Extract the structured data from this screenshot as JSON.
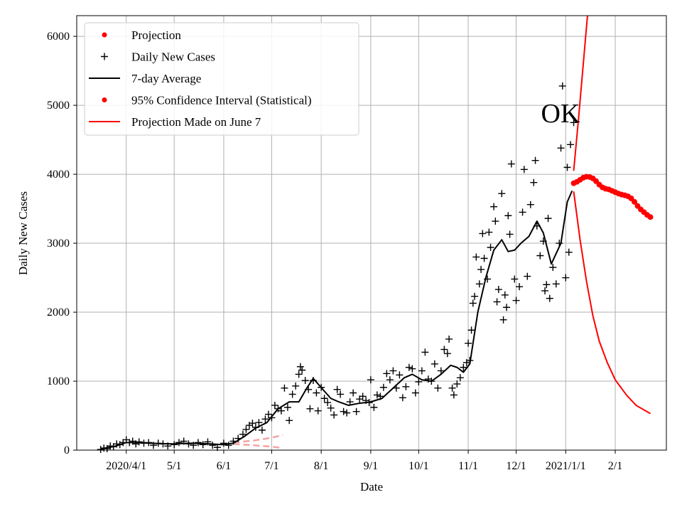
{
  "chart_data": {
    "type": "scatter",
    "title": "",
    "annotation": "OK",
    "xlabel": "Date",
    "ylabel": "Daily New Cases",
    "ylim": [
      0,
      6300
    ],
    "xlim": [
      "2020-03-01",
      "2021-03-05"
    ],
    "grid": true,
    "legend_position": "top-left",
    "yticks": [
      0,
      1000,
      2000,
      3000,
      4000,
      5000,
      6000
    ],
    "xticks": [
      {
        "date": "2020-04-01",
        "label": "2020/4/1"
      },
      {
        "date": "2020-05-01",
        "label": "5/1"
      },
      {
        "date": "2020-06-01",
        "label": "6/1"
      },
      {
        "date": "2020-07-01",
        "label": "7/1"
      },
      {
        "date": "2020-08-01",
        "label": "8/1"
      },
      {
        "date": "2020-09-01",
        "label": "9/1"
      },
      {
        "date": "2020-10-01",
        "label": "10/1"
      },
      {
        "date": "2020-11-01",
        "label": "11/1"
      },
      {
        "date": "2020-12-01",
        "label": "12/1"
      },
      {
        "date": "2021-01-01",
        "label": "2021/1/1"
      },
      {
        "date": "2021-02-01",
        "label": "2/1"
      }
    ],
    "legend": [
      {
        "label": "Projection",
        "marker": "dot",
        "color": "#ff0000"
      },
      {
        "label": "Daily New Cases",
        "marker": "plus",
        "color": "#000000"
      },
      {
        "label": "7-day Average",
        "marker": "line",
        "color": "#000000"
      },
      {
        "label": "95% Confidence Interval (Statistical)",
        "marker": "dot",
        "color": "#ff0000"
      },
      {
        "label": "Projection Made on June 7",
        "marker": "line",
        "color": "#ff0000"
      }
    ],
    "colors": {
      "cases": "#000000",
      "average": "#000000",
      "projection": "#ff0000",
      "june7": "#f4a3a3",
      "grid": "#b0b0b0"
    },
    "series": [
      {
        "name": "Daily New Cases",
        "kind": "scatter",
        "points": [
          [
            "2020-03-16",
            10
          ],
          [
            "2020-03-18",
            30
          ],
          [
            "2020-03-20",
            20
          ],
          [
            "2020-03-22",
            60
          ],
          [
            "2020-03-24",
            50
          ],
          [
            "2020-03-26",
            90
          ],
          [
            "2020-03-28",
            80
          ],
          [
            "2020-03-30",
            110
          ],
          [
            "2020-04-01",
            150
          ],
          [
            "2020-04-03",
            110
          ],
          [
            "2020-04-05",
            130
          ],
          [
            "2020-04-07",
            90
          ],
          [
            "2020-04-09",
            120
          ],
          [
            "2020-04-12",
            100
          ],
          [
            "2020-04-15",
            110
          ],
          [
            "2020-04-18",
            70
          ],
          [
            "2020-04-21",
            100
          ],
          [
            "2020-04-24",
            90
          ],
          [
            "2020-04-27",
            60
          ],
          [
            "2020-05-01",
            80
          ],
          [
            "2020-05-04",
            110
          ],
          [
            "2020-05-07",
            130
          ],
          [
            "2020-05-10",
            90
          ],
          [
            "2020-05-13",
            70
          ],
          [
            "2020-05-16",
            110
          ],
          [
            "2020-05-19",
            80
          ],
          [
            "2020-05-22",
            120
          ],
          [
            "2020-05-25",
            70
          ],
          [
            "2020-05-28",
            40
          ],
          [
            "2020-06-01",
            100
          ],
          [
            "2020-06-04",
            70
          ],
          [
            "2020-06-07",
            130
          ],
          [
            "2020-06-10",
            170
          ],
          [
            "2020-06-13",
            230
          ],
          [
            "2020-06-15",
            300
          ],
          [
            "2020-06-17",
            360
          ],
          [
            "2020-06-19",
            390
          ],
          [
            "2020-06-21",
            330
          ],
          [
            "2020-06-23",
            400
          ],
          [
            "2020-06-25",
            290
          ],
          [
            "2020-06-27",
            450
          ],
          [
            "2020-06-29",
            520
          ],
          [
            "2020-07-01",
            470
          ],
          [
            "2020-07-03",
            650
          ],
          [
            "2020-07-05",
            600
          ],
          [
            "2020-07-07",
            570
          ],
          [
            "2020-07-09",
            900
          ],
          [
            "2020-07-11",
            620
          ],
          [
            "2020-07-12",
            430
          ],
          [
            "2020-07-14",
            810
          ],
          [
            "2020-07-16",
            930
          ],
          [
            "2020-07-18",
            1100
          ],
          [
            "2020-07-19",
            1210
          ],
          [
            "2020-07-20",
            1160
          ],
          [
            "2020-07-22",
            1010
          ],
          [
            "2020-07-24",
            880
          ],
          [
            "2020-07-25",
            600
          ],
          [
            "2020-07-27",
            1010
          ],
          [
            "2020-07-29",
            830
          ],
          [
            "2020-07-30",
            570
          ],
          [
            "2020-08-01",
            910
          ],
          [
            "2020-08-03",
            750
          ],
          [
            "2020-08-05",
            690
          ],
          [
            "2020-08-07",
            610
          ],
          [
            "2020-08-09",
            510
          ],
          [
            "2020-08-11",
            880
          ],
          [
            "2020-08-13",
            810
          ],
          [
            "2020-08-15",
            560
          ],
          [
            "2020-08-17",
            540
          ],
          [
            "2020-08-19",
            700
          ],
          [
            "2020-08-21",
            830
          ],
          [
            "2020-08-23",
            560
          ],
          [
            "2020-08-25",
            740
          ],
          [
            "2020-08-27",
            780
          ],
          [
            "2020-08-29",
            720
          ],
          [
            "2020-08-31",
            690
          ],
          [
            "2020-09-01",
            1020
          ],
          [
            "2020-09-03",
            620
          ],
          [
            "2020-09-05",
            800
          ],
          [
            "2020-09-07",
            780
          ],
          [
            "2020-09-09",
            910
          ],
          [
            "2020-09-11",
            1110
          ],
          [
            "2020-09-13",
            1020
          ],
          [
            "2020-09-15",
            1150
          ],
          [
            "2020-09-17",
            900
          ],
          [
            "2020-09-19",
            1090
          ],
          [
            "2020-09-21",
            760
          ],
          [
            "2020-09-23",
            920
          ],
          [
            "2020-09-25",
            1200
          ],
          [
            "2020-09-27",
            1180
          ],
          [
            "2020-09-29",
            830
          ],
          [
            "2020-10-01",
            990
          ],
          [
            "2020-10-03",
            1150
          ],
          [
            "2020-10-05",
            1420
          ],
          [
            "2020-10-07",
            1030
          ],
          [
            "2020-10-09",
            1000
          ],
          [
            "2020-10-11",
            1250
          ],
          [
            "2020-10-13",
            900
          ],
          [
            "2020-10-15",
            1150
          ],
          [
            "2020-10-17",
            1460
          ],
          [
            "2020-10-19",
            1400
          ],
          [
            "2020-10-20",
            1610
          ],
          [
            "2020-10-22",
            900
          ],
          [
            "2020-10-23",
            800
          ],
          [
            "2020-10-25",
            960
          ],
          [
            "2020-10-27",
            1050
          ],
          [
            "2020-10-29",
            1200
          ],
          [
            "2020-10-31",
            1270
          ],
          [
            "2020-11-01",
            1550
          ],
          [
            "2020-11-02",
            1300
          ],
          [
            "2020-11-03",
            1740
          ],
          [
            "2020-11-04",
            2130
          ],
          [
            "2020-11-05",
            2230
          ],
          [
            "2020-11-06",
            2800
          ],
          [
            "2020-11-08",
            2410
          ],
          [
            "2020-11-09",
            2620
          ],
          [
            "2020-11-10",
            3140
          ],
          [
            "2020-11-11",
            2780
          ],
          [
            "2020-11-13",
            2480
          ],
          [
            "2020-11-14",
            3160
          ],
          [
            "2020-11-15",
            2940
          ],
          [
            "2020-11-17",
            3530
          ],
          [
            "2020-11-18",
            3320
          ],
          [
            "2020-11-19",
            2150
          ],
          [
            "2020-11-20",
            2330
          ],
          [
            "2020-11-22",
            3720
          ],
          [
            "2020-11-23",
            1890
          ],
          [
            "2020-11-24",
            2250
          ],
          [
            "2020-11-25",
            2070
          ],
          [
            "2020-11-26",
            3400
          ],
          [
            "2020-11-27",
            3130
          ],
          [
            "2020-11-28",
            4150
          ],
          [
            "2020-11-30",
            2480
          ],
          [
            "2020-12-01",
            2170
          ],
          [
            "2020-12-03",
            2370
          ],
          [
            "2020-12-05",
            3450
          ],
          [
            "2020-12-06",
            4070
          ],
          [
            "2020-12-08",
            2520
          ],
          [
            "2020-12-10",
            3560
          ],
          [
            "2020-12-12",
            3880
          ],
          [
            "2020-12-13",
            4200
          ],
          [
            "2020-12-14",
            3250
          ],
          [
            "2020-12-16",
            2820
          ],
          [
            "2020-12-18",
            3030
          ],
          [
            "2020-12-19",
            2310
          ],
          [
            "2020-12-20",
            2400
          ],
          [
            "2020-12-21",
            3360
          ],
          [
            "2020-12-22",
            2200
          ],
          [
            "2020-12-24",
            2650
          ],
          [
            "2020-12-26",
            2410
          ],
          [
            "2020-12-28",
            3000
          ],
          [
            "2020-12-29",
            4380
          ],
          [
            "2020-12-30",
            5280
          ],
          [
            "2021-01-01",
            2500
          ],
          [
            "2021-01-02",
            4100
          ],
          [
            "2021-01-03",
            2870
          ],
          [
            "2021-01-04",
            4430
          ],
          [
            "2021-01-06",
            4750
          ]
        ]
      },
      {
        "name": "7-day Average",
        "kind": "line",
        "points": [
          [
            "2020-03-16",
            20
          ],
          [
            "2020-03-24",
            50
          ],
          [
            "2020-04-01",
            110
          ],
          [
            "2020-04-10",
            110
          ],
          [
            "2020-04-20",
            95
          ],
          [
            "2020-05-01",
            90
          ],
          [
            "2020-05-10",
            100
          ],
          [
            "2020-05-20",
            95
          ],
          [
            "2020-05-31",
            80
          ],
          [
            "2020-06-07",
            100
          ],
          [
            "2020-06-14",
            200
          ],
          [
            "2020-06-21",
            320
          ],
          [
            "2020-06-28",
            400
          ],
          [
            "2020-07-05",
            600
          ],
          [
            "2020-07-12",
            700
          ],
          [
            "2020-07-18",
            700
          ],
          [
            "2020-07-23",
            900
          ],
          [
            "2020-07-27",
            1040
          ],
          [
            "2020-08-02",
            880
          ],
          [
            "2020-08-07",
            750
          ],
          [
            "2020-08-12",
            700
          ],
          [
            "2020-08-18",
            650
          ],
          [
            "2020-08-25",
            680
          ],
          [
            "2020-09-01",
            700
          ],
          [
            "2020-09-08",
            750
          ],
          [
            "2020-09-15",
            900
          ],
          [
            "2020-09-22",
            1050
          ],
          [
            "2020-09-27",
            1100
          ],
          [
            "2020-10-03",
            1020
          ],
          [
            "2020-10-09",
            1000
          ],
          [
            "2020-10-15",
            1100
          ],
          [
            "2020-10-21",
            1230
          ],
          [
            "2020-10-25",
            1200
          ],
          [
            "2020-10-29",
            1130
          ],
          [
            "2020-11-02",
            1250
          ],
          [
            "2020-11-07",
            2000
          ],
          [
            "2020-11-12",
            2500
          ],
          [
            "2020-11-17",
            2900
          ],
          [
            "2020-11-22",
            3050
          ],
          [
            "2020-11-26",
            2880
          ],
          [
            "2020-11-30",
            2900
          ],
          [
            "2020-12-04",
            3000
          ],
          [
            "2020-12-09",
            3100
          ],
          [
            "2020-12-14",
            3320
          ],
          [
            "2020-12-18",
            3150
          ],
          [
            "2020-12-23",
            2700
          ],
          [
            "2020-12-29",
            3000
          ],
          [
            "2021-01-02",
            3600
          ],
          [
            "2021-01-05",
            3760
          ]
        ]
      },
      {
        "name": "Projection",
        "kind": "scatter",
        "points": [
          [
            "2021-01-06",
            3870
          ],
          [
            "2021-01-08",
            3890
          ],
          [
            "2021-01-10",
            3920
          ],
          [
            "2021-01-12",
            3950
          ],
          [
            "2021-01-14",
            3965
          ],
          [
            "2021-01-16",
            3960
          ],
          [
            "2021-01-18",
            3940
          ],
          [
            "2021-01-20",
            3900
          ],
          [
            "2021-01-22",
            3850
          ],
          [
            "2021-01-24",
            3810
          ],
          [
            "2021-01-26",
            3790
          ],
          [
            "2021-01-28",
            3780
          ],
          [
            "2021-01-30",
            3760
          ],
          [
            "2021-02-01",
            3740
          ],
          [
            "2021-02-03",
            3720
          ],
          [
            "2021-02-05",
            3705
          ],
          [
            "2021-02-07",
            3695
          ],
          [
            "2021-02-09",
            3680
          ],
          [
            "2021-02-11",
            3650
          ],
          [
            "2021-02-13",
            3600
          ],
          [
            "2021-02-15",
            3540
          ],
          [
            "2021-02-17",
            3490
          ],
          [
            "2021-02-19",
            3450
          ],
          [
            "2021-02-21",
            3410
          ],
          [
            "2021-02-23",
            3380
          ]
        ]
      },
      {
        "name": "95% Confidence Interval (Statistical)",
        "kind": "line",
        "points_upper": [
          [
            "2021-01-06",
            4050
          ],
          [
            "2021-01-09",
            4800
          ],
          [
            "2021-01-12",
            5600
          ],
          [
            "2021-01-15",
            6400
          ]
        ],
        "points_lower": [
          [
            "2021-01-06",
            3750
          ],
          [
            "2021-01-10",
            3050
          ],
          [
            "2021-01-14",
            2450
          ],
          [
            "2021-01-18",
            1950
          ],
          [
            "2021-01-22",
            1580
          ],
          [
            "2021-01-27",
            1270
          ],
          [
            "2021-02-01",
            1020
          ],
          [
            "2021-02-08",
            800
          ],
          [
            "2021-02-14",
            650
          ],
          [
            "2021-02-23",
            530
          ]
        ]
      },
      {
        "name": "Projection Made on June 7",
        "kind": "band",
        "upper": [
          [
            "2020-06-07",
            110
          ],
          [
            "2020-06-20",
            140
          ],
          [
            "2020-07-01",
            180
          ],
          [
            "2020-07-08",
            220
          ]
        ],
        "lower": [
          [
            "2020-06-07",
            90
          ],
          [
            "2020-06-20",
            70
          ],
          [
            "2020-07-01",
            50
          ],
          [
            "2020-07-08",
            30
          ]
        ]
      }
    ]
  }
}
